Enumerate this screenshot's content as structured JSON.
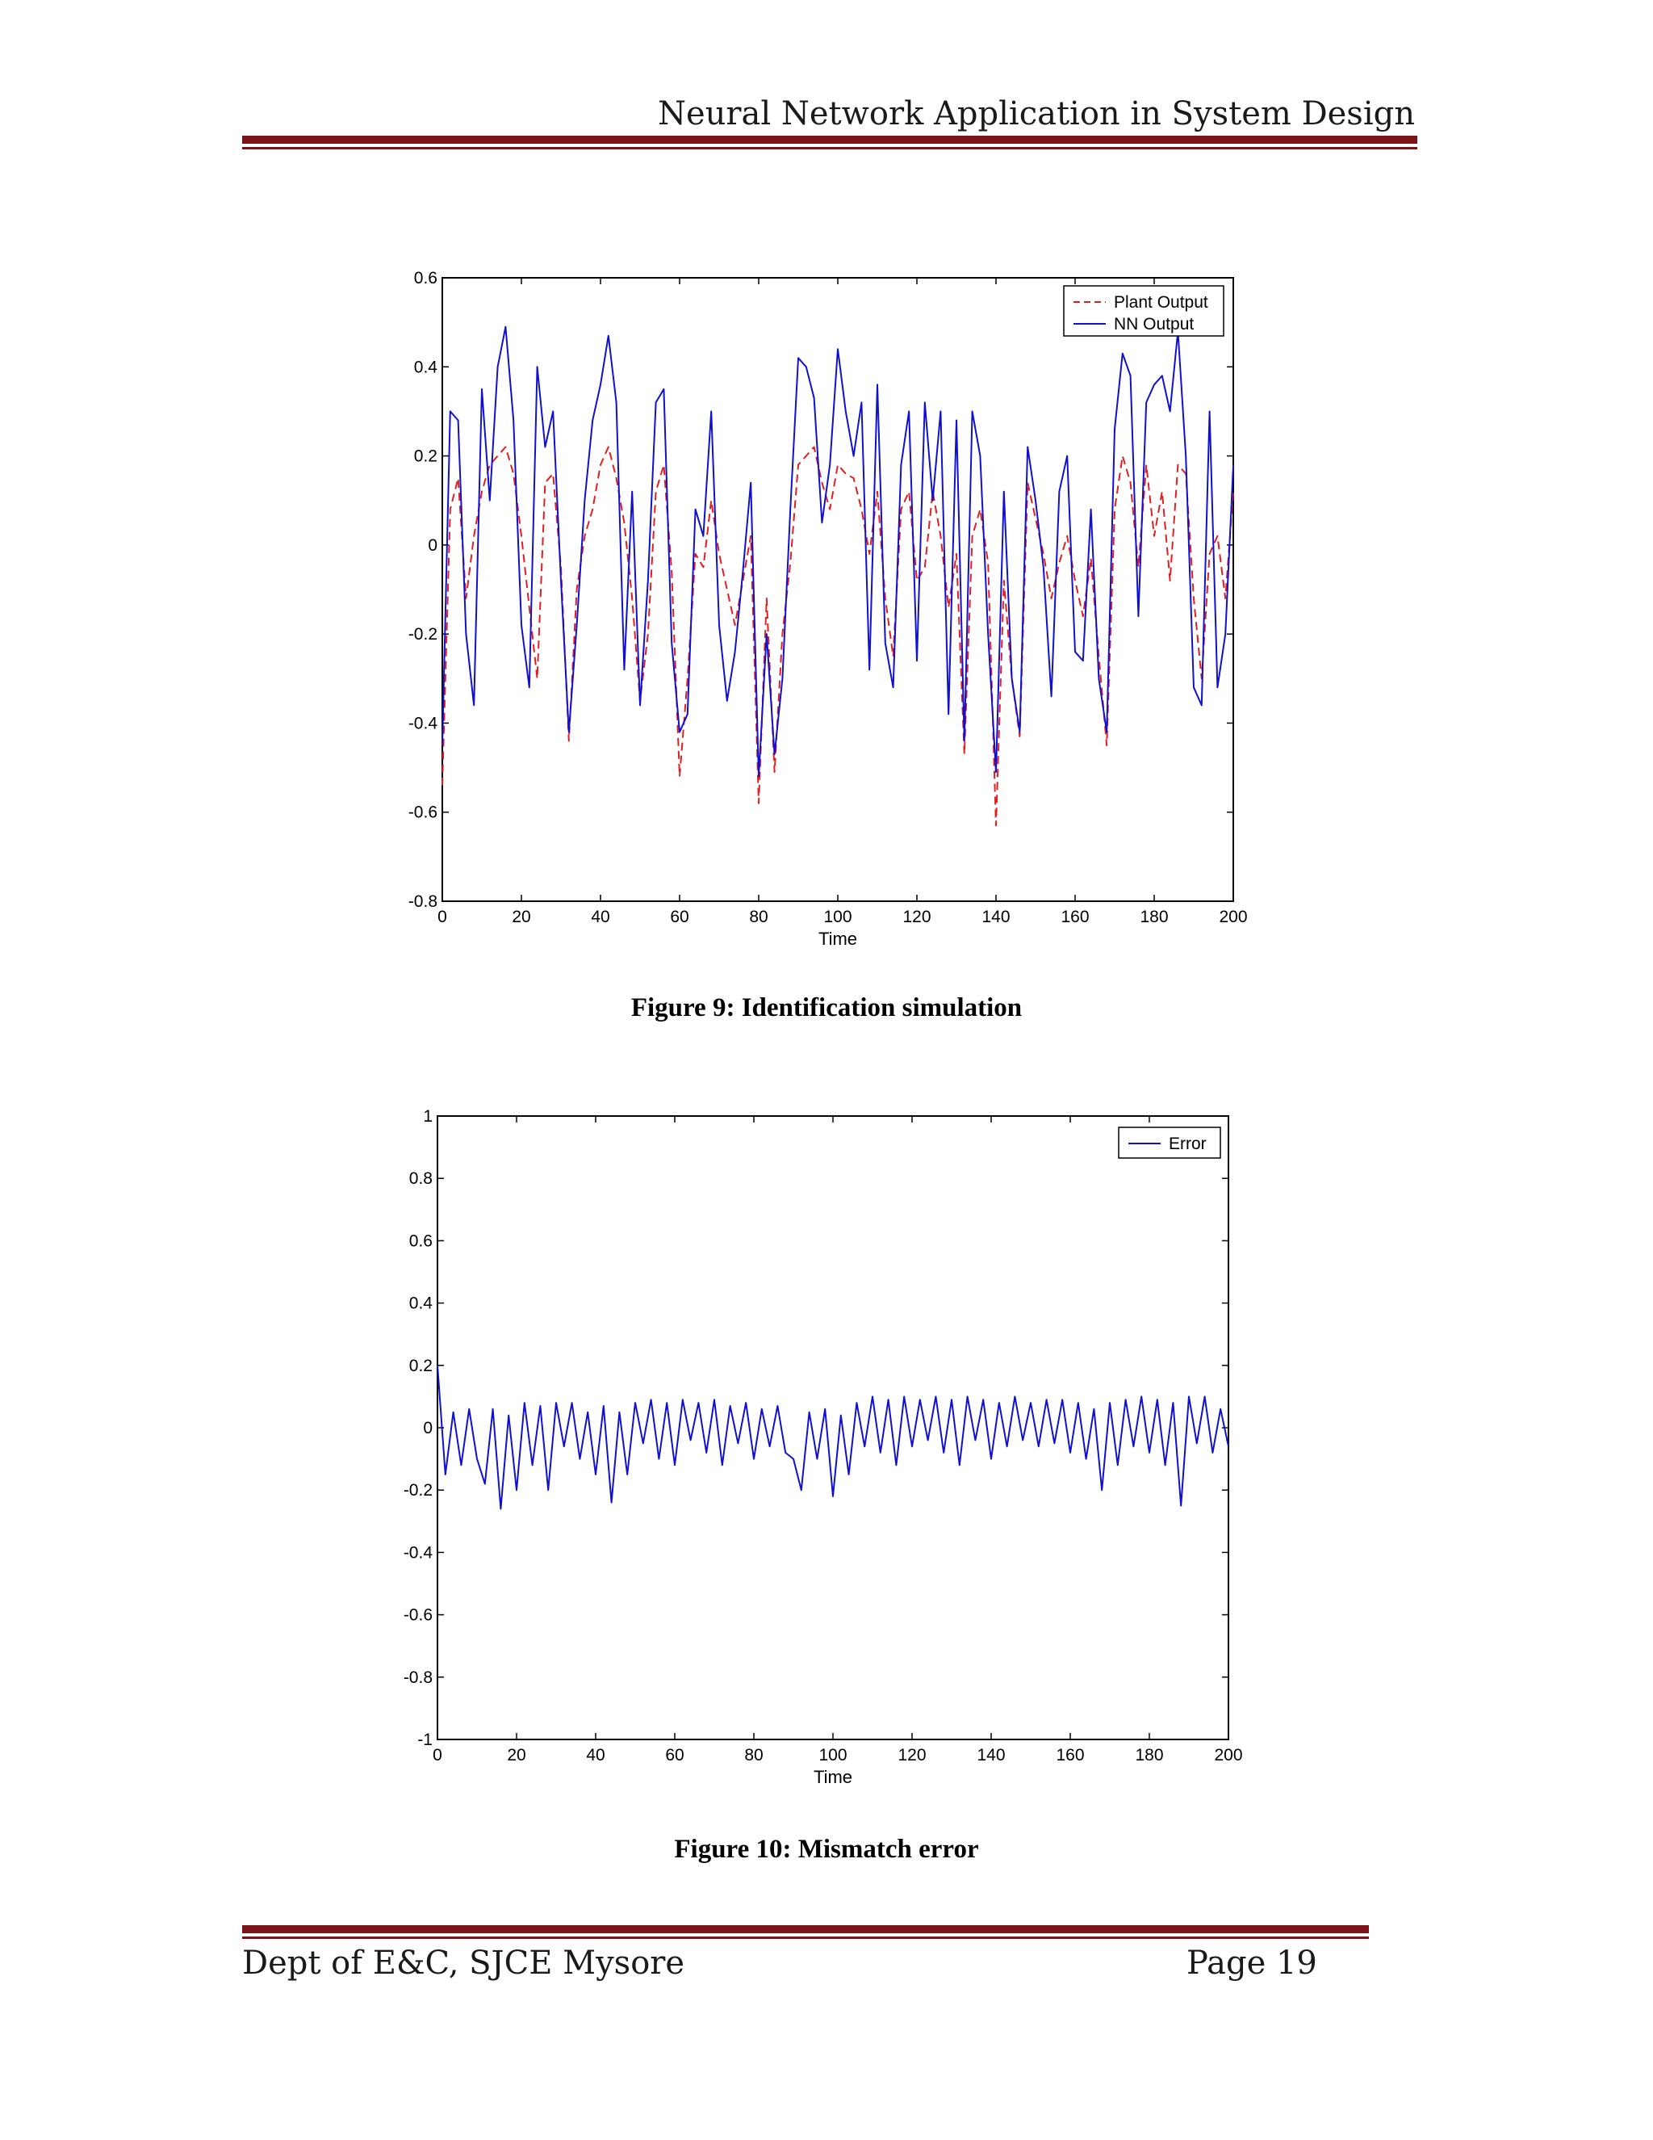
{
  "header": {
    "title": "Neural Network Application in System Design"
  },
  "footer": {
    "department": "Dept of E&C, SJCE Mysore",
    "page": "Page 19"
  },
  "figures": [
    {
      "caption": "Figure 9: Identification simulation"
    },
    {
      "caption": "Figure 10: Mismatch error"
    }
  ],
  "colors": {
    "rule": "#7a1416",
    "plant": "#e02020",
    "nn": "#1010d0",
    "error": "#1010d0"
  },
  "chart_data": [
    {
      "type": "line",
      "title": "",
      "xlabel": "Time",
      "ylabel": "",
      "xlim": [
        0,
        200
      ],
      "ylim": [
        -0.8,
        0.6
      ],
      "xticks": [
        "0",
        "20",
        "40",
        "60",
        "80",
        "100",
        "120",
        "140",
        "160",
        "180",
        "200"
      ],
      "yticks": [
        "0.6",
        "0.4",
        "0.2",
        "0",
        "-0.2",
        "-0.4",
        "-0.6",
        "-0.8"
      ],
      "legend_position": "top-right",
      "grid": false,
      "series": [
        {
          "name": "Plant Output",
          "style": "dashed",
          "x": [
            0,
            2,
            4,
            6,
            8,
            10,
            12,
            14,
            16,
            18,
            20,
            22,
            24,
            26,
            28,
            30,
            32,
            34,
            36,
            38,
            40,
            42,
            44,
            46,
            48,
            50,
            52,
            54,
            56,
            58,
            60,
            62,
            64,
            66,
            68,
            70,
            72,
            74,
            76,
            78,
            80,
            82,
            84,
            86,
            88,
            90,
            92,
            94,
            96,
            98,
            100,
            102,
            104,
            106,
            108,
            110,
            112,
            114,
            116,
            118,
            120,
            122,
            124,
            126,
            128,
            130,
            132,
            134,
            136,
            138,
            140,
            142,
            144,
            146,
            148,
            150,
            152,
            154,
            156,
            158,
            160,
            162,
            164,
            166,
            168,
            170,
            172,
            174,
            176,
            178,
            180,
            182,
            184,
            186,
            188,
            190,
            192,
            194,
            196,
            198,
            200
          ],
          "y": [
            -0.54,
            0.08,
            0.15,
            -0.12,
            0.02,
            0.12,
            0.18,
            0.2,
            0.22,
            0.16,
            0.02,
            -0.14,
            -0.3,
            0.14,
            0.16,
            -0.05,
            -0.44,
            -0.1,
            0.02,
            0.08,
            0.18,
            0.22,
            0.15,
            0.05,
            -0.12,
            -0.35,
            -0.2,
            0.12,
            0.18,
            -0.06,
            -0.52,
            -0.3,
            -0.02,
            -0.05,
            0.1,
            -0.02,
            -0.1,
            -0.18,
            -0.08,
            0.02,
            -0.58,
            -0.12,
            -0.51,
            -0.2,
            -0.04,
            0.18,
            0.2,
            0.22,
            0.14,
            0.08,
            0.18,
            0.16,
            0.15,
            0.08,
            -0.02,
            0.12,
            -0.12,
            -0.25,
            0.08,
            0.12,
            -0.08,
            -0.05,
            0.12,
            0.02,
            -0.14,
            -0.02,
            -0.47,
            0.02,
            0.08,
            -0.04,
            -0.63,
            -0.08,
            -0.3,
            -0.43,
            0.14,
            0.06,
            -0.02,
            -0.12,
            -0.04,
            0.02,
            -0.08,
            -0.16,
            -0.03,
            -0.25,
            -0.45,
            0.08,
            0.2,
            0.14,
            -0.05,
            0.18,
            0.02,
            0.12,
            -0.08,
            0.18,
            0.16,
            -0.12,
            -0.3,
            -0.02,
            0.02,
            -0.12,
            0.12
          ]
        },
        {
          "name": "NN Output",
          "style": "solid",
          "x": [
            0,
            2,
            4,
            6,
            8,
            10,
            12,
            14,
            16,
            18,
            20,
            22,
            24,
            26,
            28,
            30,
            32,
            34,
            36,
            38,
            40,
            42,
            44,
            46,
            48,
            50,
            52,
            54,
            56,
            58,
            60,
            62,
            64,
            66,
            68,
            70,
            72,
            74,
            76,
            78,
            80,
            82,
            84,
            86,
            88,
            90,
            92,
            94,
            96,
            98,
            100,
            102,
            104,
            106,
            108,
            110,
            112,
            114,
            116,
            118,
            120,
            122,
            124,
            126,
            128,
            130,
            132,
            134,
            136,
            138,
            140,
            142,
            144,
            146,
            148,
            150,
            152,
            154,
            156,
            158,
            160,
            162,
            164,
            166,
            168,
            170,
            172,
            174,
            176,
            178,
            180,
            182,
            184,
            186,
            188,
            190,
            192,
            194,
            196,
            198,
            200
          ],
          "y": [
            -0.45,
            0.3,
            0.28,
            -0.2,
            -0.36,
            0.35,
            0.1,
            0.4,
            0.49,
            0.28,
            -0.18,
            -0.32,
            0.4,
            0.22,
            0.3,
            -0.08,
            -0.42,
            -0.18,
            0.1,
            0.28,
            0.36,
            0.47,
            0.32,
            -0.28,
            0.12,
            -0.36,
            -0.08,
            0.32,
            0.35,
            -0.22,
            -0.42,
            -0.38,
            0.08,
            0.02,
            0.3,
            -0.18,
            -0.35,
            -0.24,
            -0.06,
            0.14,
            -0.52,
            -0.2,
            -0.47,
            -0.3,
            0.08,
            0.42,
            0.4,
            0.33,
            0.05,
            0.18,
            0.44,
            0.3,
            0.2,
            0.32,
            -0.28,
            0.36,
            -0.22,
            -0.32,
            0.18,
            0.3,
            -0.26,
            0.32,
            0.1,
            0.3,
            -0.38,
            0.28,
            -0.44,
            0.3,
            0.2,
            -0.2,
            -0.51,
            0.12,
            -0.3,
            -0.42,
            0.22,
            0.1,
            -0.05,
            -0.34,
            0.12,
            0.2,
            -0.24,
            -0.26,
            0.08,
            -0.3,
            -0.42,
            0.26,
            0.43,
            0.38,
            -0.16,
            0.32,
            0.36,
            0.38,
            0.3,
            0.48,
            0.2,
            -0.32,
            -0.36,
            0.3,
            -0.32,
            -0.2,
            0.18
          ]
        }
      ]
    },
    {
      "type": "line",
      "title": "",
      "xlabel": "Time",
      "ylabel": "",
      "xlim": [
        0,
        200
      ],
      "ylim": [
        -1,
        1
      ],
      "xticks": [
        "0",
        "20",
        "40",
        "60",
        "80",
        "100",
        "120",
        "140",
        "160",
        "180",
        "200"
      ],
      "yticks": [
        "1",
        "0.8",
        "0.6",
        "0.4",
        "0.2",
        "0",
        "-0.2",
        "-0.4",
        "-0.6",
        "-0.8",
        "-1"
      ],
      "legend_position": "top-right",
      "grid": false,
      "series": [
        {
          "name": "Error",
          "style": "solid",
          "x": [
            0,
            2,
            4,
            6,
            8,
            10,
            12,
            14,
            16,
            18,
            20,
            22,
            24,
            26,
            28,
            30,
            32,
            34,
            36,
            38,
            40,
            42,
            44,
            46,
            48,
            50,
            52,
            54,
            56,
            58,
            60,
            62,
            64,
            66,
            68,
            70,
            72,
            74,
            76,
            78,
            80,
            82,
            84,
            86,
            88,
            90,
            92,
            94,
            96,
            98,
            100,
            102,
            104,
            106,
            108,
            110,
            112,
            114,
            116,
            118,
            120,
            122,
            124,
            126,
            128,
            130,
            132,
            134,
            136,
            138,
            140,
            142,
            144,
            146,
            148,
            150,
            152,
            154,
            156,
            158,
            160,
            162,
            164,
            166,
            168,
            170,
            172,
            174,
            176,
            178,
            180,
            182,
            184,
            186,
            188,
            190,
            192,
            194,
            196,
            198,
            200
          ],
          "y": [
            0.2,
            -0.15,
            0.05,
            -0.12,
            0.06,
            -0.1,
            -0.18,
            0.06,
            -0.26,
            0.04,
            -0.2,
            0.08,
            -0.12,
            0.07,
            -0.2,
            0.08,
            -0.06,
            0.08,
            -0.1,
            0.05,
            -0.15,
            0.07,
            -0.24,
            0.05,
            -0.15,
            0.08,
            -0.05,
            0.09,
            -0.1,
            0.08,
            -0.12,
            0.09,
            -0.04,
            0.08,
            -0.08,
            0.09,
            -0.12,
            0.07,
            -0.05,
            0.08,
            -0.1,
            0.06,
            -0.06,
            0.07,
            -0.08,
            -0.1,
            -0.2,
            0.05,
            -0.1,
            0.06,
            -0.22,
            0.04,
            -0.15,
            0.08,
            -0.06,
            0.1,
            -0.08,
            0.09,
            -0.12,
            0.1,
            -0.06,
            0.09,
            -0.04,
            0.1,
            -0.08,
            0.09,
            -0.12,
            0.1,
            -0.04,
            0.09,
            -0.1,
            0.08,
            -0.06,
            0.1,
            -0.04,
            0.08,
            -0.06,
            0.09,
            -0.05,
            0.09,
            -0.08,
            0.08,
            -0.1,
            0.06,
            -0.2,
            0.08,
            -0.12,
            0.09,
            -0.06,
            0.1,
            -0.08,
            0.09,
            -0.12,
            0.08,
            -0.25,
            0.1,
            -0.05,
            0.1,
            -0.08,
            0.06,
            -0.06
          ]
        }
      ]
    }
  ]
}
